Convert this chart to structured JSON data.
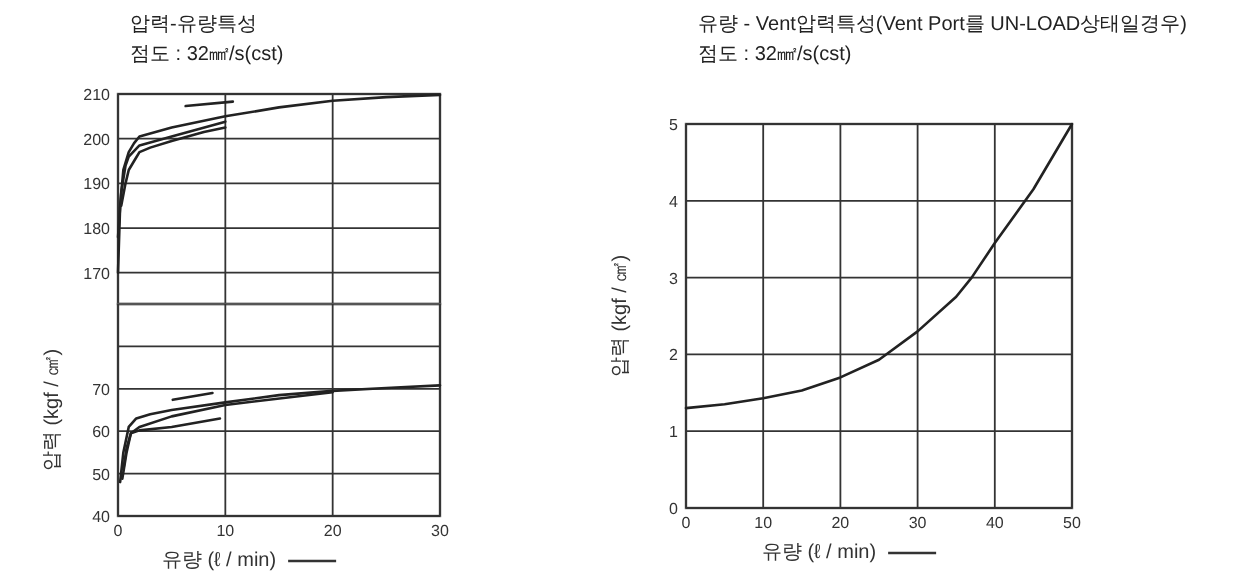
{
  "chart_data": [
    {
      "type": "line",
      "title": "압력-유량특성",
      "subtitle": "점도 : 32㎟/s(cst)",
      "xlim": [
        0,
        30
      ],
      "xticks": [
        0,
        10,
        20,
        30
      ],
      "ylim": [
        163,
        210
      ],
      "yticks": [
        170,
        180,
        190,
        200,
        210
      ],
      "grid": true,
      "tick_labels": "y",
      "series": [
        {
          "color": "#222222",
          "x": [
            0,
            0.2,
            0.5,
            1,
            1.5,
            2,
            5,
            10,
            15,
            20,
            25,
            30
          ],
          "values": [
            170,
            185,
            193,
            197,
            199,
            200.5,
            202.5,
            205,
            207,
            208.5,
            209.3,
            209.8
          ]
        },
        {
          "color": "#222222",
          "x": [
            0,
            0.3,
            0.7,
            1,
            2,
            5,
            10
          ],
          "values": [
            178,
            188,
            194,
            196,
            198.5,
            200.5,
            203.8
          ]
        },
        {
          "color": "#222222",
          "x": [
            0.3,
            0.7,
            1,
            1.5,
            2,
            3,
            5,
            8,
            10
          ],
          "values": [
            185,
            190,
            193,
            195,
            197,
            198,
            199.5,
            201.5,
            202.5
          ]
        },
        {
          "color": "#222222",
          "x": [
            6.3,
            10.7
          ],
          "values": [
            207.3,
            208.3
          ]
        }
      ]
    },
    {
      "type": "line",
      "xlabel": "유량 (ℓ / min)",
      "ylabel": "압력 (kgf / ㎠)",
      "xlim": [
        0,
        30
      ],
      "xticks": [
        0,
        10,
        20,
        30
      ],
      "ylim": [
        40,
        90
      ],
      "yticks": [
        40,
        50,
        60,
        70,
        {
          "value": 80,
          "label": null
        }
      ],
      "grid": true,
      "series": [
        {
          "color": "#222222",
          "x": [
            0.2,
            0.5,
            1,
            1.7,
            3,
            5,
            10,
            15,
            20,
            25,
            30
          ],
          "values": [
            48,
            55,
            61,
            63,
            64,
            65,
            66.8,
            68.5,
            69.5,
            70.2,
            70.8
          ]
        },
        {
          "color": "#222222",
          "x": [
            0.5,
            0.8,
            1.2,
            2,
            5,
            10,
            20
          ],
          "values": [
            51,
            56,
            59.5,
            61,
            63.5,
            66.2,
            69.2
          ]
        },
        {
          "color": "#222222",
          "x": [
            0.4,
            0.8,
            1.2,
            2,
            5,
            9.5
          ],
          "values": [
            48.8,
            55,
            59.5,
            60.2,
            61,
            63
          ]
        },
        {
          "color": "#222222",
          "x": [
            5.1,
            8.8
          ],
          "values": [
            67.4,
            69
          ]
        }
      ]
    },
    {
      "type": "line",
      "title": "유량 - Vent압력특성(Vent Port를 UN-LOAD상태일경우)",
      "subtitle": "점도 : 32㎟/s(cst)",
      "xlabel": "유량 (ℓ / min)",
      "ylabel": "압력 (kgf / ㎠)",
      "xlim": [
        0,
        50
      ],
      "xticks": [
        0,
        10,
        20,
        30,
        40,
        50
      ],
      "ylim": [
        0,
        5
      ],
      "yticks": [
        0,
        1,
        2,
        3,
        4,
        5
      ],
      "grid": true,
      "series": [
        {
          "color": "#222222",
          "x": [
            0,
            5,
            10,
            15,
            20,
            25,
            30,
            35,
            37,
            40,
            45,
            50
          ],
          "values": [
            1.3,
            1.35,
            1.43,
            1.53,
            1.7,
            1.93,
            2.3,
            2.75,
            3,
            3.45,
            4.15,
            5
          ]
        }
      ]
    }
  ]
}
